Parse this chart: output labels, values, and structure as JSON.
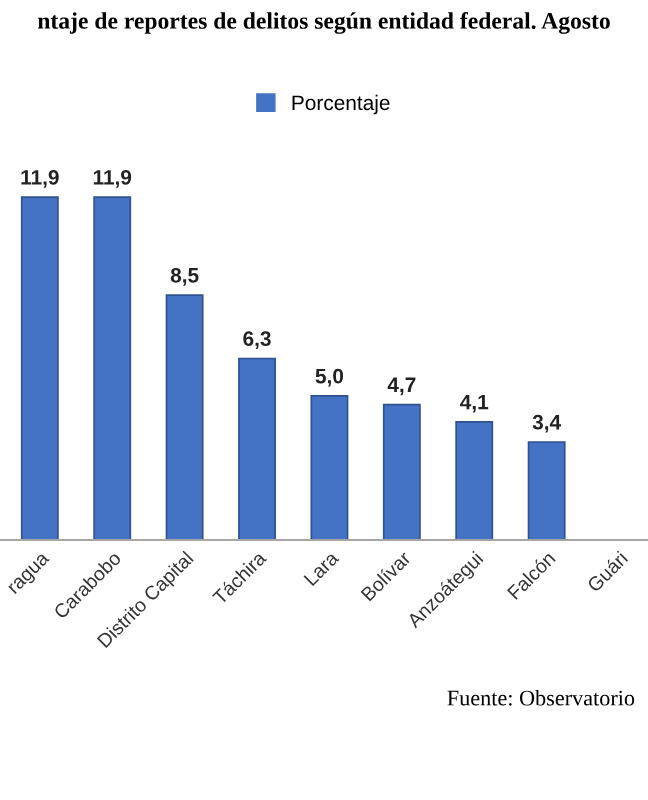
{
  "chart_data": {
    "type": "bar",
    "title": "ntaje de reportes de delitos según entidad federal. Agosto",
    "categories": [
      "ragua",
      "Carabobo",
      "Distrito Capital",
      "Táchira",
      "Lara",
      "Bolívar",
      "Anzoátegui",
      "Falcón",
      "Guári"
    ],
    "series": [
      {
        "name": "Porcentaje",
        "color": "#4472c4",
        "values": [
          11.9,
          11.9,
          8.5,
          6.3,
          5.0,
          4.7,
          4.1,
          3.4,
          null
        ],
        "value_labels": [
          "11,9",
          "11,9",
          "8,5",
          "6,3",
          "5,0",
          "4,7",
          "4,1",
          "3,4",
          null
        ]
      }
    ],
    "legend": "top",
    "grid": false,
    "tick_labels": "x",
    "annotations": [
      "Fuente: Observatorio"
    ]
  }
}
